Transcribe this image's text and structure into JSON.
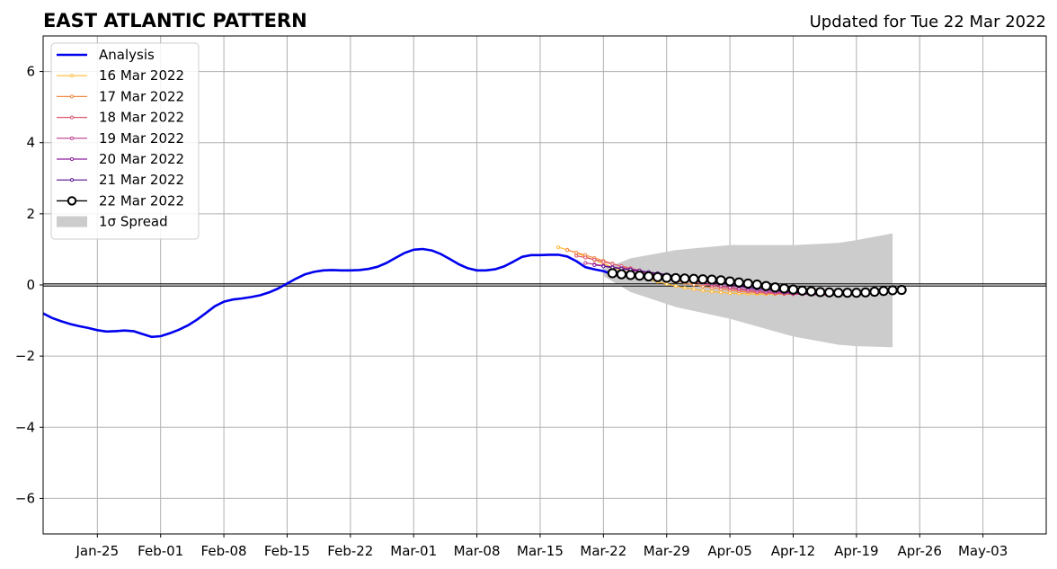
{
  "title_left": "EAST ATLANTIC PATTERN",
  "title_right": "Updated for Tue 22 Mar 2022",
  "chart_data": {
    "type": "line",
    "x_axis": {
      "type": "date",
      "range": [
        "2022-01-19",
        "2022-05-10"
      ],
      "ticks": [
        {
          "date": "2022-01-25",
          "label": "Jan-25"
        },
        {
          "date": "2022-02-01",
          "label": "Feb-01"
        },
        {
          "date": "2022-02-08",
          "label": "Feb-08"
        },
        {
          "date": "2022-02-15",
          "label": "Feb-15"
        },
        {
          "date": "2022-02-22",
          "label": "Feb-22"
        },
        {
          "date": "2022-03-01",
          "label": "Mar-01"
        },
        {
          "date": "2022-03-08",
          "label": "Mar-08"
        },
        {
          "date": "2022-03-15",
          "label": "Mar-15"
        },
        {
          "date": "2022-03-22",
          "label": "Mar-22"
        },
        {
          "date": "2022-03-29",
          "label": "Mar-29"
        },
        {
          "date": "2022-04-05",
          "label": "Apr-05"
        },
        {
          "date": "2022-04-12",
          "label": "Apr-12"
        },
        {
          "date": "2022-04-19",
          "label": "Apr-19"
        },
        {
          "date": "2022-04-26",
          "label": "Apr-26"
        },
        {
          "date": "2022-05-03",
          "label": "May-03"
        }
      ]
    },
    "y_axis": {
      "range": [
        -7,
        7
      ],
      "ticks": [
        {
          "value": -6,
          "label": "−6"
        },
        {
          "value": -4,
          "label": "−4"
        },
        {
          "value": -2,
          "label": "−2"
        },
        {
          "value": 0,
          "label": "0"
        },
        {
          "value": 2,
          "label": "2"
        },
        {
          "value": 4,
          "label": "4"
        },
        {
          "value": 6,
          "label": "6"
        }
      ]
    },
    "grid": true,
    "zero_line": true,
    "legend_position": "top-left",
    "series": [
      {
        "name": "Analysis",
        "color": "#0000ee",
        "style": "analysis",
        "start": "2022-01-19",
        "values": [
          -0.8,
          -0.93,
          -1.02,
          -1.1,
          -1.16,
          -1.21,
          -1.27,
          -1.31,
          -1.3,
          -1.28,
          -1.3,
          -1.38,
          -1.46,
          -1.44,
          -1.36,
          -1.26,
          -1.14,
          -0.98,
          -0.79,
          -0.6,
          -0.47,
          -0.41,
          -0.38,
          -0.34,
          -0.29,
          -0.21,
          -0.1,
          0.04,
          0.18,
          0.3,
          0.37,
          0.41,
          0.42,
          0.41,
          0.41,
          0.42,
          0.45,
          0.51,
          0.62,
          0.76,
          0.9,
          0.99,
          1.01,
          0.97,
          0.87,
          0.73,
          0.58,
          0.47,
          0.41,
          0.41,
          0.44,
          0.52,
          0.65,
          0.79,
          0.84,
          0.84,
          0.85,
          0.85,
          0.8,
          0.67,
          0.5,
          0.44,
          0.39,
          0.3
        ]
      },
      {
        "name": "16 Mar 2022",
        "color": "#ffb933",
        "style": "forecast",
        "start": "2022-03-17",
        "values": [
          1.06,
          0.99,
          0.9,
          0.8,
          0.7,
          0.6,
          0.5,
          0.41,
          0.32,
          0.24,
          0.16,
          0.09,
          0.03,
          -0.03,
          -0.08,
          -0.12,
          -0.16,
          -0.19,
          -0.21,
          -0.23,
          -0.24,
          -0.25,
          -0.26,
          -0.26,
          -0.26,
          -0.26,
          -0.26,
          -0.26,
          -0.25,
          -0.25,
          -0.24,
          -0.24
        ]
      },
      {
        "name": "17 Mar 2022",
        "color": "#f18a45",
        "style": "forecast",
        "start": "2022-03-18",
        "values": [
          0.98,
          0.91,
          0.84,
          0.76,
          0.68,
          0.6,
          0.52,
          0.44,
          0.37,
          0.3,
          0.23,
          0.17,
          0.11,
          0.06,
          0.01,
          -0.04,
          -0.08,
          -0.12,
          -0.15,
          -0.18,
          -0.2,
          -0.22,
          -0.23,
          -0.24,
          -0.25,
          -0.25,
          -0.25,
          -0.25,
          -0.25,
          -0.24,
          -0.24
        ]
      },
      {
        "name": "18 Mar 2022",
        "color": "#de5770",
        "style": "forecast",
        "start": "2022-03-19",
        "values": [
          0.82,
          0.77,
          0.71,
          0.65,
          0.59,
          0.53,
          0.47,
          0.41,
          0.35,
          0.29,
          0.23,
          0.18,
          0.13,
          0.08,
          0.03,
          -0.02,
          -0.06,
          -0.1,
          -0.14,
          -0.17,
          -0.2,
          -0.22,
          -0.24,
          -0.25,
          -0.26,
          -0.26,
          -0.27,
          -0.27,
          -0.27,
          -0.26
        ]
      },
      {
        "name": "19 Mar 2022",
        "color": "#bc3a8c",
        "style": "forecast",
        "start": "2022-03-20",
        "values": [
          0.62,
          0.58,
          0.54,
          0.5,
          0.46,
          0.42,
          0.37,
          0.32,
          0.28,
          0.24,
          0.2,
          0.15,
          0.11,
          0.07,
          0.02,
          -0.02,
          -0.06,
          -0.1,
          -0.13,
          -0.16,
          -0.19,
          -0.21,
          -0.23,
          -0.25,
          -0.26,
          -0.27,
          -0.28,
          -0.28,
          -0.28
        ]
      },
      {
        "name": "20 Mar 2022",
        "color": "#8e1ea0",
        "style": "forecast",
        "start": "2022-03-21",
        "values": [
          0.56,
          0.53,
          0.5,
          0.47,
          0.44,
          0.4,
          0.36,
          0.32,
          0.28,
          0.24,
          0.2,
          0.16,
          0.12,
          0.08,
          0.04,
          0.0,
          -0.04,
          -0.08,
          -0.11,
          -0.14,
          -0.17,
          -0.2,
          -0.22,
          -0.24,
          -0.25,
          -0.26,
          -0.27,
          -0.27
        ]
      },
      {
        "name": "21 Mar 2022",
        "color": "#57108c",
        "style": "forecast",
        "start": "2022-03-22",
        "values": [
          0.52,
          0.49,
          0.46,
          0.43,
          0.4,
          0.36,
          0.33,
          0.29,
          0.25,
          0.21,
          0.17,
          0.13,
          0.09,
          0.05,
          0.01,
          -0.03,
          -0.07,
          -0.1,
          -0.13,
          -0.16,
          -0.19,
          -0.21,
          -0.23,
          -0.24,
          -0.25,
          -0.26,
          -0.26
        ]
      },
      {
        "name": "22 Mar 2022",
        "color": "#000000",
        "style": "current",
        "start": "2022-03-23",
        "values": [
          0.33,
          0.3,
          0.28,
          0.26,
          0.24,
          0.22,
          0.2,
          0.19,
          0.18,
          0.17,
          0.16,
          0.15,
          0.13,
          0.1,
          0.07,
          0.04,
          0.01,
          -0.03,
          -0.07,
          -0.1,
          -0.13,
          -0.16,
          -0.18,
          -0.2,
          -0.21,
          -0.22,
          -0.22,
          -0.22,
          -0.21,
          -0.19,
          -0.17,
          -0.15,
          -0.14
        ]
      }
    ],
    "spread": {
      "name": "1σ Spread",
      "color": "#cccccc",
      "points": [
        {
          "date": "2022-03-22",
          "lower": 0.25,
          "upper": 0.45
        },
        {
          "date": "2022-03-25",
          "lower": -0.2,
          "upper": 0.75
        },
        {
          "date": "2022-03-30",
          "lower": -0.62,
          "upper": 0.98
        },
        {
          "date": "2022-04-05",
          "lower": -0.95,
          "upper": 1.12
        },
        {
          "date": "2022-04-12",
          "lower": -1.45,
          "upper": 1.12
        },
        {
          "date": "2022-04-17",
          "lower": -1.68,
          "upper": 1.18
        },
        {
          "date": "2022-04-19",
          "lower": -1.72,
          "upper": 1.26
        },
        {
          "date": "2022-04-23",
          "lower": -1.75,
          "upper": 1.45
        }
      ]
    }
  }
}
